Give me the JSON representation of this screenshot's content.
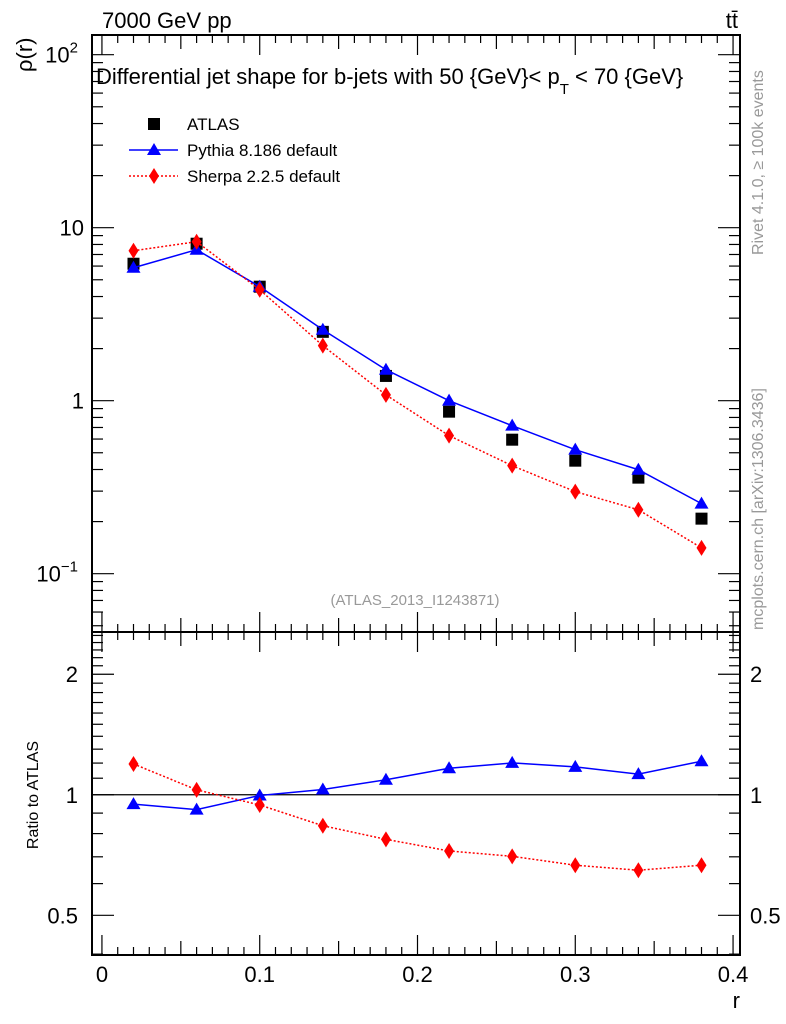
{
  "header": {
    "left": "7000 GeV pp",
    "right": "tt̄"
  },
  "side_text": {
    "rivet": "Rivet 4.1.0, ≥ 100k events",
    "mcplots": "mcplots.cern.ch [arXiv:1306.3436]"
  },
  "chart_data": [
    {
      "type": "line",
      "title_main": "Differential jet shape for b-jets with 50 {GeV}< p",
      "title_sub": "T",
      "title_end": " < 70 {GeV}",
      "analysis_label": "(ATLAS_2013_I1243871)",
      "ylabel": "ρ(r)",
      "xlabel": "r",
      "yscale": "log",
      "ylim": [
        0.046,
        130
      ],
      "xlim": [
        -0.0063,
        0.4044
      ],
      "ytick_labels": [
        {
          "v": 100,
          "base": "10",
          "exp": "2"
        },
        {
          "v": 10,
          "base": "10",
          "exp": ""
        },
        {
          "v": 1,
          "base": "1",
          "exp": ""
        },
        {
          "v": 0.1,
          "base": "10",
          "exp": "−1"
        }
      ],
      "legend_position": "top-left",
      "x": [
        0.02,
        0.06,
        0.1,
        0.14,
        0.18,
        0.22,
        0.26,
        0.3,
        0.34,
        0.38
      ],
      "series": [
        {
          "name": "ATLAS",
          "color": "#000000",
          "marker": "square",
          "values": [
            6.19,
            8.08,
            4.56,
            2.5,
            1.39,
            0.864,
            0.595,
            0.45,
            0.359,
            0.208
          ]
        },
        {
          "name": "Pythia 8.186 default",
          "color": "#0000ff",
          "marker": "triangle",
          "line": "solid",
          "values": [
            5.87,
            7.46,
            4.56,
            2.57,
            1.51,
            1.0,
            0.717,
            0.521,
            0.399,
            0.254
          ]
        },
        {
          "name": "Sherpa 2.2.5 default",
          "color": "#ff0000",
          "marker": "diamond",
          "line": "dotted",
          "values": [
            7.36,
            8.3,
            4.38,
            2.08,
            1.08,
            0.628,
            0.421,
            0.298,
            0.234,
            0.141
          ]
        }
      ]
    },
    {
      "type": "line",
      "ylabel": "Ratio to ATLAS",
      "xlabel": "r",
      "yscale": "log",
      "ylim": [
        0.398,
        2.55
      ],
      "xlim": [
        -0.0063,
        0.4044
      ],
      "ytick_labels": [
        "0.5",
        "1",
        "2"
      ],
      "xtick_labels": [
        "0",
        "0.1",
        "0.2",
        "0.3",
        "0.4"
      ],
      "x": [
        0.02,
        0.06,
        0.1,
        0.14,
        0.18,
        0.22,
        0.26,
        0.3,
        0.34,
        0.38
      ],
      "series": [
        {
          "name": "Pythia 8.186 default",
          "color": "#0000ff",
          "values": [
            0.948,
            0.918,
            0.996,
            1.031,
            1.09,
            1.165,
            1.201,
            1.174,
            1.126,
            1.213
          ]
        },
        {
          "name": "Sherpa 2.2.5 default",
          "color": "#ff0000",
          "values": [
            1.194,
            1.029,
            0.943,
            0.837,
            0.774,
            0.724,
            0.702,
            0.667,
            0.648,
            0.667
          ]
        }
      ]
    }
  ]
}
